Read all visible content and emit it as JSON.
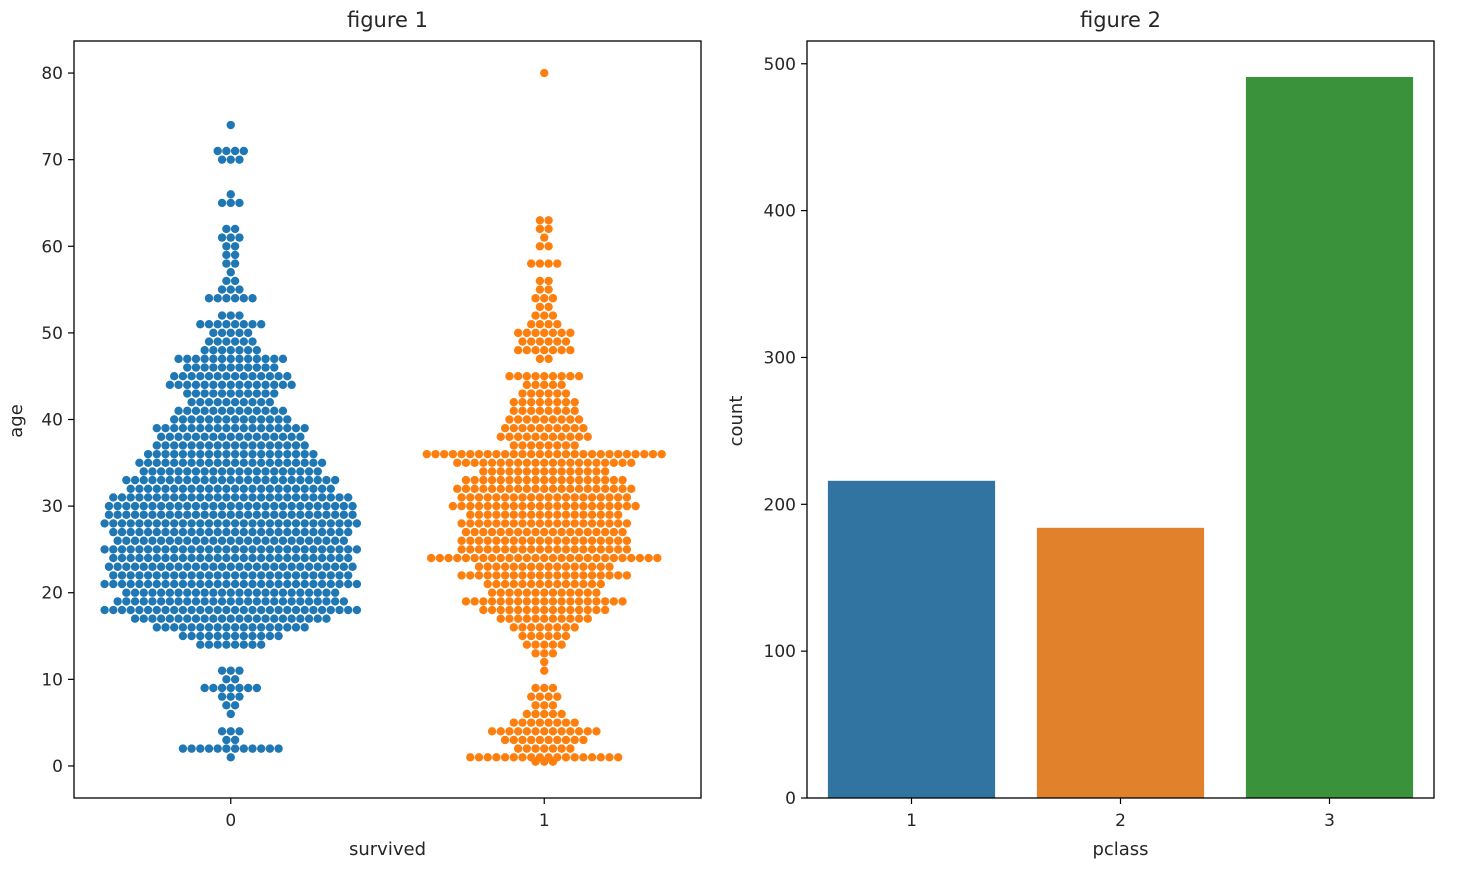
{
  "colors": {
    "series0": "#1f77b4",
    "series1": "#ff7f0e",
    "bar1": "#3274a1",
    "bar2": "#e1812c",
    "bar3": "#3a923a"
  },
  "chart_data": [
    {
      "type": "scatter",
      "style": "swarm",
      "title": "figure 1",
      "xlabel": "survived",
      "ylabel": "age",
      "categories": [
        "0",
        "1"
      ],
      "ylim": [
        -3.7,
        83.7
      ],
      "yticks": [
        0,
        10,
        20,
        30,
        40,
        50,
        60,
        70,
        80
      ],
      "grid": false,
      "series": [
        {
          "category": "0",
          "color": "#1f77b4",
          "levels": [
            [
              74,
              1
            ],
            [
              71,
              4
            ],
            [
              70,
              3
            ],
            [
              66,
              1
            ],
            [
              65,
              3
            ],
            [
              62,
              2
            ],
            [
              61,
              3
            ],
            [
              60,
              2
            ],
            [
              59,
              2
            ],
            [
              58,
              2
            ],
            [
              57,
              1
            ],
            [
              56,
              2
            ],
            [
              55,
              3
            ],
            [
              54,
              6
            ],
            [
              52,
              3
            ],
            [
              51,
              8
            ],
            [
              50,
              5
            ],
            [
              49,
              6
            ],
            [
              48,
              7
            ],
            [
              47,
              13
            ],
            [
              46,
              11
            ],
            [
              45,
              14
            ],
            [
              44,
              15
            ],
            [
              43,
              11
            ],
            [
              42,
              10
            ],
            [
              41,
              13
            ],
            [
              40,
              14
            ],
            [
              39,
              18
            ],
            [
              38,
              17
            ],
            [
              37,
              18
            ],
            [
              36,
              20
            ],
            [
              35,
              22
            ],
            [
              34,
              21
            ],
            [
              33,
              25
            ],
            [
              32,
              24
            ],
            [
              31,
              28
            ],
            [
              30,
              29
            ],
            [
              29,
              29
            ],
            [
              28,
              30
            ],
            [
              27,
              28
            ],
            [
              26,
              27
            ],
            [
              25,
              30
            ],
            [
              24,
              28
            ],
            [
              23,
              29
            ],
            [
              22,
              28
            ],
            [
              21,
              30
            ],
            [
              20,
              25
            ],
            [
              19,
              27
            ],
            [
              18,
              30
            ],
            [
              17,
              23
            ],
            [
              16,
              18
            ],
            [
              15,
              12
            ],
            [
              14,
              8
            ],
            [
              11,
              3
            ],
            [
              10,
              2
            ],
            [
              9,
              7
            ],
            [
              8,
              3
            ],
            [
              7,
              2
            ],
            [
              6,
              1
            ],
            [
              4,
              3
            ],
            [
              3,
              2
            ],
            [
              2,
              12
            ],
            [
              1,
              1
            ]
          ]
        },
        {
          "category": "1",
          "color": "#ff7f0e",
          "levels": [
            [
              80,
              1
            ],
            [
              63,
              2
            ],
            [
              62,
              2
            ],
            [
              61,
              1
            ],
            [
              60,
              2
            ],
            [
              58,
              4
            ],
            [
              56,
              2
            ],
            [
              55,
              2
            ],
            [
              54,
              3
            ],
            [
              53,
              2
            ],
            [
              52,
              3
            ],
            [
              51,
              4
            ],
            [
              50,
              7
            ],
            [
              49,
              6
            ],
            [
              48,
              7
            ],
            [
              47,
              2
            ],
            [
              45,
              9
            ],
            [
              44,
              5
            ],
            [
              43,
              6
            ],
            [
              42,
              8
            ],
            [
              41,
              8
            ],
            [
              40,
              9
            ],
            [
              39,
              10
            ],
            [
              38,
              11
            ],
            [
              37,
              8
            ],
            [
              36,
              28
            ],
            [
              35,
              21
            ],
            [
              34,
              15
            ],
            [
              33,
              19
            ],
            [
              32,
              21
            ],
            [
              31,
              20
            ],
            [
              30,
              22
            ],
            [
              29,
              18
            ],
            [
              28,
              20
            ],
            [
              27,
              19
            ],
            [
              26,
              20
            ],
            [
              25,
              20
            ],
            [
              24,
              27
            ],
            [
              23,
              16
            ],
            [
              22,
              20
            ],
            [
              21,
              14
            ],
            [
              20,
              13
            ],
            [
              19,
              19
            ],
            [
              18,
              15
            ],
            [
              17,
              11
            ],
            [
              16,
              8
            ],
            [
              15,
              6
            ],
            [
              14,
              5
            ],
            [
              13,
              3
            ],
            [
              12,
              1
            ],
            [
              11,
              1
            ],
            [
              9,
              3
            ],
            [
              8,
              4
            ],
            [
              7,
              3
            ],
            [
              6,
              5
            ],
            [
              5,
              8
            ],
            [
              4,
              13
            ],
            [
              3,
              10
            ],
            [
              2,
              7
            ],
            [
              1,
              18
            ],
            [
              0.5,
              3
            ]
          ]
        }
      ]
    },
    {
      "type": "bar",
      "title": "figure 2",
      "xlabel": "pclass",
      "ylabel": "count",
      "categories": [
        "1",
        "2",
        "3"
      ],
      "values": [
        216,
        184,
        491
      ],
      "ylim": [
        0,
        515.5
      ],
      "yticks": [
        0,
        100,
        200,
        300,
        400,
        500
      ],
      "colors": [
        "#3274a1",
        "#e1812c",
        "#3a923a"
      ],
      "grid": false
    }
  ]
}
